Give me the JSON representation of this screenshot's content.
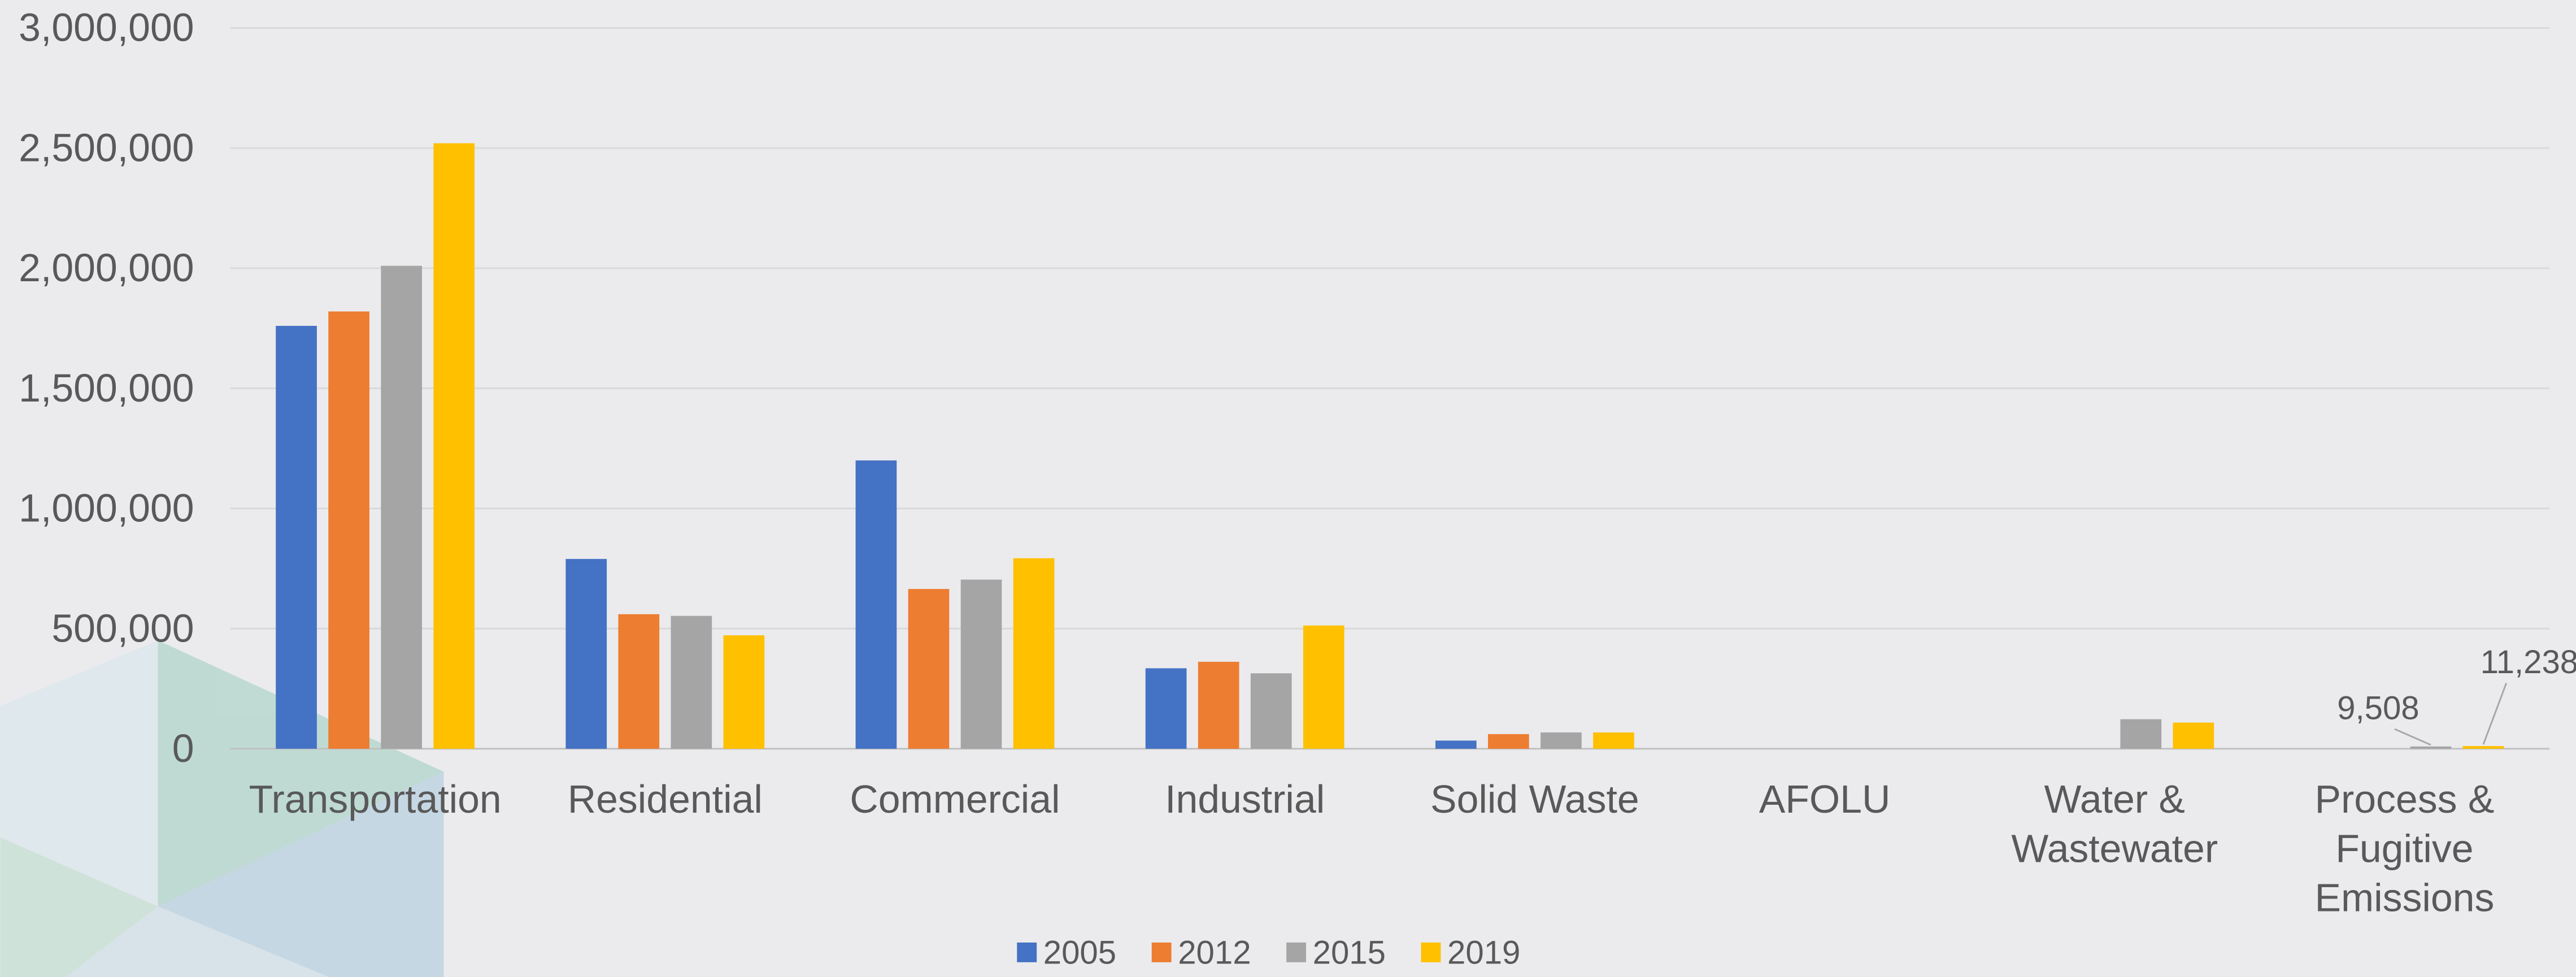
{
  "chart_data": {
    "type": "bar",
    "categories": [
      "Transportation",
      "Residential",
      "Commercial",
      "Industrial",
      "Solid Waste",
      "AFOLU",
      "Water & Wastewater",
      "Process & Fugitive Emissions"
    ],
    "series": [
      {
        "name": "2005",
        "color": "#4472c4",
        "values": [
          1760000,
          790000,
          1200000,
          335000,
          34000,
          null,
          null,
          null
        ]
      },
      {
        "name": "2012",
        "color": "#ed7d31",
        "values": [
          1820000,
          560000,
          665000,
          362000,
          61000,
          null,
          null,
          null
        ]
      },
      {
        "name": "2015",
        "color": "#a5a5a5",
        "values": [
          2010000,
          553000,
          704000,
          314000,
          68000,
          null,
          123000,
          9508
        ],
        "value_labels": [
          null,
          null,
          null,
          null,
          null,
          null,
          null,
          "9,508"
        ]
      },
      {
        "name": "2019",
        "color": "#ffc000",
        "values": [
          2520000,
          472000,
          793000,
          513000,
          68000,
          null,
          109000,
          11238
        ],
        "value_labels": [
          null,
          null,
          null,
          null,
          null,
          null,
          null,
          "11,238"
        ]
      }
    ],
    "ylim": [
      0,
      3000000
    ],
    "yticks": [
      0,
      {
        "value": 500000,
        "label": "500,000"
      },
      {
        "value": 1000000,
        "label": "1,000,000"
      },
      {
        "value": 1500000,
        "label": "1,500,000"
      },
      {
        "value": 2000000,
        "label": "2,000,000"
      },
      {
        "value": 2500000,
        "label": "2,500,000"
      },
      {
        "value": 3000000,
        "label": "3,000,000"
      }
    ],
    "grid": true,
    "legend": "bottom"
  }
}
